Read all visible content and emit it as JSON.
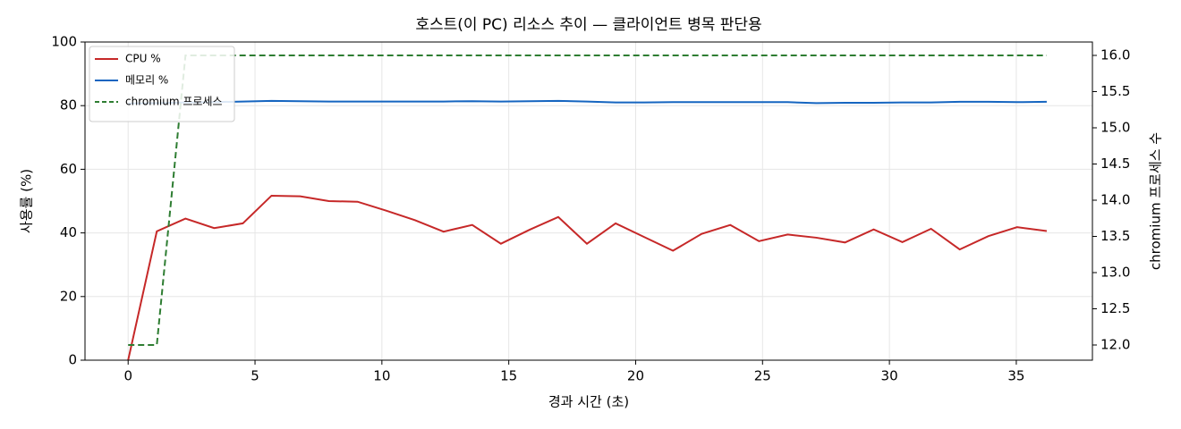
{
  "chart_data": {
    "type": "line",
    "title": "호스트(이 PC) 리소스 추이 — 클라이언트 병목 판단용",
    "x_label": "경과 시간 (초)",
    "y_label": "사용률 (%)",
    "y2_label": "chromium 프로세스 수",
    "x": [
      0,
      1.13,
      2.26,
      3.39,
      4.52,
      5.65,
      6.78,
      7.91,
      9.04,
      10.17,
      11.3,
      12.43,
      13.56,
      14.69,
      15.82,
      16.95,
      18.08,
      19.21,
      20.34,
      21.47,
      22.6,
      23.73,
      24.86,
      25.99,
      27.12,
      28.25,
      29.38,
      30.51,
      31.64,
      32.77,
      33.9,
      35.03,
      36.2
    ],
    "series": [
      {
        "name": "CPU %",
        "color": "#c62828",
        "linestyle": "solid",
        "values": [
          0,
          40.5,
          44.5,
          41.5,
          43,
          51.7,
          51.5,
          50,
          49.8,
          47,
          44,
          40.4,
          42.5,
          36.6,
          41,
          45,
          36.6,
          43,
          38.7,
          34.4,
          39.7,
          42.5,
          37.4,
          39.5,
          38.5,
          37,
          41.1,
          37.1,
          41.3,
          34.8,
          39,
          41.8,
          40.6
        ]
      },
      {
        "name": "메모리 %",
        "color": "#1565c0",
        "linestyle": "solid",
        "values": [
          80.7,
          80.8,
          81.0,
          81.1,
          81.3,
          81.5,
          81.4,
          81.3,
          81.3,
          81.3,
          81.3,
          81.3,
          81.4,
          81.3,
          81.4,
          81.5,
          81.3,
          81.0,
          81.0,
          81.1,
          81.1,
          81.1,
          81.1,
          81.1,
          80.8,
          80.9,
          80.9,
          81.0,
          81.0,
          81.2,
          81.2,
          81.1,
          81.2
        ]
      },
      {
        "name": "chromium 프로세스",
        "color": "#2e7d32",
        "linestyle": "dashed",
        "axis": "y2",
        "values": [
          12,
          12,
          16,
          16,
          16,
          16,
          16,
          16,
          16,
          16,
          16,
          16,
          16,
          16,
          16,
          16,
          16,
          16,
          16,
          16,
          16,
          16,
          16,
          16,
          16,
          16,
          16,
          16,
          16,
          16,
          16,
          16,
          16
        ]
      }
    ],
    "xlim": [
      -1.7,
      38.0
    ],
    "xticks": [
      0,
      5,
      10,
      15,
      20,
      25,
      30,
      35
    ],
    "ylim": [
      0,
      100
    ],
    "yticks": [
      0,
      20,
      40,
      60,
      80,
      100
    ],
    "y2lim": [
      11.79,
      16.185
    ],
    "y2ticks": [
      {
        "value": 12,
        "label": "12.0"
      },
      {
        "value": 12.5,
        "label": "12.5"
      },
      {
        "value": 13,
        "label": "13.0"
      },
      {
        "value": 13.5,
        "label": "13.5"
      },
      {
        "value": 14,
        "label": "14.0"
      },
      {
        "value": 14.5,
        "label": "14.5"
      },
      {
        "value": 15,
        "label": "15.0"
      },
      {
        "value": 15.5,
        "label": "15.5"
      },
      {
        "value": 16,
        "label": "16.0"
      }
    ],
    "grid": true,
    "legend": "upper left"
  }
}
